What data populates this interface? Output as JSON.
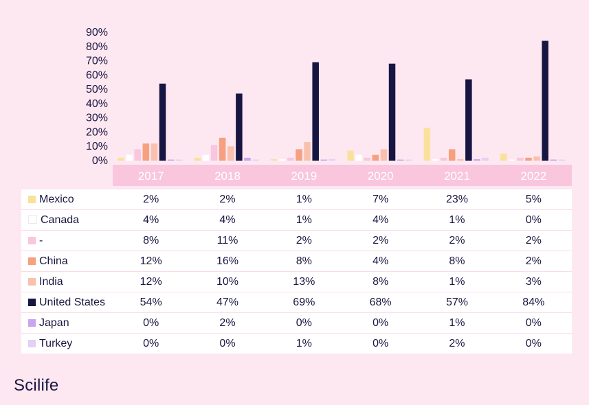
{
  "brand": "Scilife",
  "chart_data": {
    "type": "bar",
    "categories": [
      "2017",
      "2018",
      "2019",
      "2020",
      "2021",
      "2022"
    ],
    "y_ticks": [
      "90%",
      "80%",
      "70%",
      "60%",
      "50%",
      "40%",
      "30%",
      "20%",
      "10%",
      "0%"
    ],
    "ylim": [
      0,
      90
    ],
    "series": [
      {
        "name": "Mexico",
        "color": "#f9e19c",
        "values": [
          2,
          2,
          1,
          7,
          23,
          5
        ],
        "labels": [
          "2%",
          "2%",
          "1%",
          "7%",
          "23%",
          "5%"
        ]
      },
      {
        "name": "Canada",
        "color": "#ffffff",
        "values": [
          4,
          4,
          1,
          4,
          1,
          0
        ],
        "labels": [
          "4%",
          "4%",
          "1%",
          "4%",
          "1%",
          "0%"
        ]
      },
      {
        "name": "-",
        "color": "#f9c6de",
        "values": [
          8,
          11,
          2,
          2,
          2,
          2
        ],
        "labels": [
          "8%",
          "11%",
          "2%",
          "2%",
          "2%",
          "2%"
        ]
      },
      {
        "name": "China",
        "color": "#f7a080",
        "values": [
          12,
          16,
          8,
          4,
          8,
          2
        ],
        "labels": [
          "12%",
          "16%",
          "8%",
          "4%",
          "8%",
          "2%"
        ]
      },
      {
        "name": "India",
        "color": "#f9c1ad",
        "values": [
          12,
          10,
          13,
          8,
          1,
          3
        ],
        "labels": [
          "12%",
          "10%",
          "13%",
          "8%",
          "1%",
          "3%"
        ]
      },
      {
        "name": "United States",
        "color": "#171542",
        "values": [
          54,
          47,
          69,
          68,
          57,
          84
        ],
        "labels": [
          "54%",
          "47%",
          "69%",
          "68%",
          "57%",
          "84%"
        ]
      },
      {
        "name": "Japan",
        "color": "#c9a5ee",
        "values": [
          0,
          2,
          0,
          0,
          1,
          0
        ],
        "labels": [
          "0%",
          "2%",
          "0%",
          "0%",
          "1%",
          "0%"
        ]
      },
      {
        "name": "Turkey",
        "color": "#e2d0f5",
        "values": [
          0,
          0,
          1,
          0,
          2,
          0
        ],
        "labels": [
          "0%",
          "0%",
          "1%",
          "0%",
          "2%",
          "0%"
        ]
      }
    ],
    "legend_position": "table-left",
    "grid": false
  }
}
